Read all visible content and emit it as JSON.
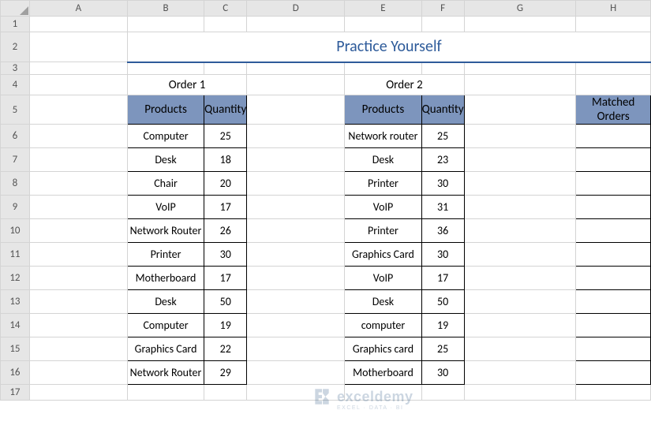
{
  "columns": {
    "headers": [
      "A",
      "B",
      "C",
      "D",
      "E",
      "F",
      "G",
      "H"
    ],
    "widths": [
      40,
      140,
      100,
      22,
      140,
      100,
      22,
      160,
      100
    ]
  },
  "rows": {
    "headers": [
      "1",
      "2",
      "3",
      "4",
      "5",
      "6",
      "7",
      "8",
      "9",
      "10",
      "11",
      "12",
      "13",
      "14",
      "15",
      "16",
      "17"
    ],
    "heights": [
      20,
      38,
      16,
      26,
      30,
      30,
      30,
      30,
      30,
      30,
      30,
      30,
      30,
      30,
      30,
      30,
      20
    ]
  },
  "title": "Practice Yourself",
  "section1": "Order 1",
  "section2": "Order 2",
  "header_products": "Products",
  "header_quantity": "Quantity",
  "header_matched": "Matched Orders",
  "order1": [
    {
      "p": "Computer",
      "q": "25"
    },
    {
      "p": "Desk",
      "q": "18"
    },
    {
      "p": "Chair",
      "q": "20"
    },
    {
      "p": "VoIP",
      "q": "17"
    },
    {
      "p": "Network Router",
      "q": "26"
    },
    {
      "p": "Printer",
      "q": "30"
    },
    {
      "p": "Motherboard",
      "q": "17"
    },
    {
      "p": "Desk",
      "q": "50"
    },
    {
      "p": "Computer",
      "q": "19"
    },
    {
      "p": "Graphics Card",
      "q": "22"
    },
    {
      "p": "Network Router",
      "q": "29"
    }
  ],
  "order2": [
    {
      "p": "Network router",
      "q": "25"
    },
    {
      "p": "Desk",
      "q": "23"
    },
    {
      "p": "Printer",
      "q": "30"
    },
    {
      "p": "VoIP",
      "q": "31"
    },
    {
      "p": "Printer",
      "q": "36"
    },
    {
      "p": "Graphics Card",
      "q": "30"
    },
    {
      "p": "VoIP",
      "q": "17"
    },
    {
      "p": "Desk",
      "q": "50"
    },
    {
      "p": "computer",
      "q": "19"
    },
    {
      "p": "Graphics card",
      "q": "25"
    },
    {
      "p": "Motherboard",
      "q": "30"
    }
  ],
  "colors": {
    "title": "#2e5b9a",
    "header_bg": "#7d95bd",
    "grid_border": "#d4d4d4",
    "data_border": "#000000",
    "col_row_hdr_bg": "#e6e6e6"
  },
  "watermark": {
    "line1": "exceldemy",
    "line2": "EXCEL · DATA · BI"
  }
}
